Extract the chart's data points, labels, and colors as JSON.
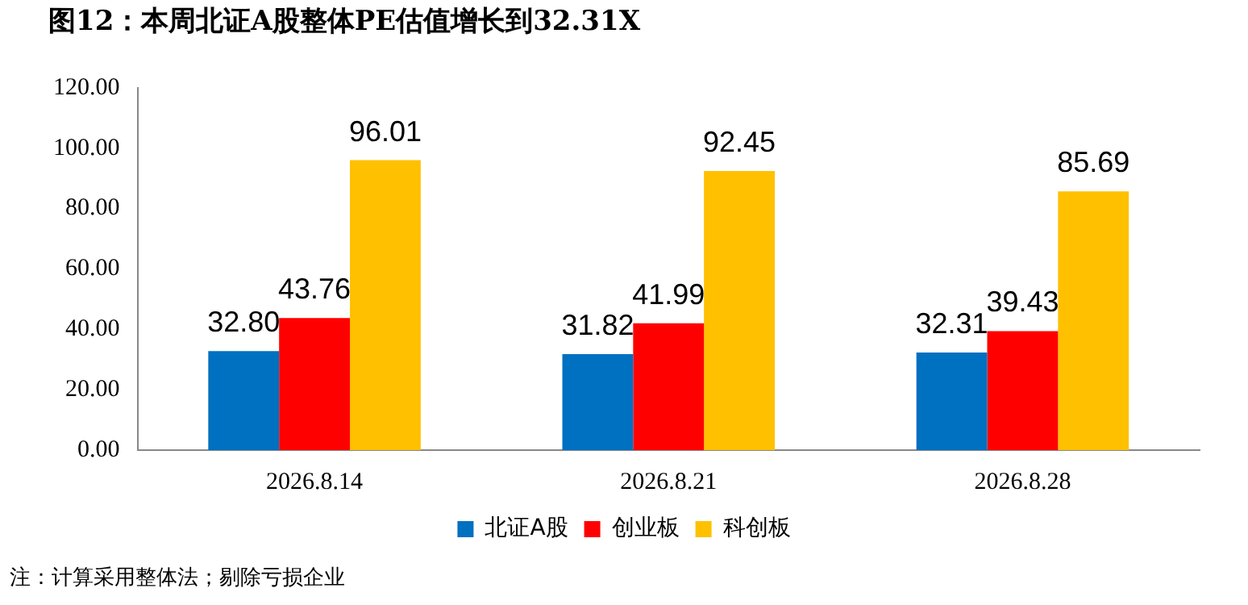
{
  "chart_data": {
    "type": "bar",
    "title": "图12：本周北证A股整体PE估值增长到32.31X",
    "categories": [
      "2026.8.14",
      "2026.8.21",
      "2026.8.28"
    ],
    "series": [
      {
        "name": "北证A股",
        "color": "#0070c0",
        "values": [
          32.8,
          31.82,
          32.31
        ],
        "value_labels": [
          "32.80",
          "31.82",
          "32.31"
        ]
      },
      {
        "name": "创业板",
        "color": "#ff0000",
        "values": [
          43.76,
          41.99,
          39.43
        ],
        "value_labels": [
          "43.76",
          "41.99",
          "39.43"
        ]
      },
      {
        "name": "科创板",
        "color": "#ffc000",
        "values": [
          96.01,
          92.45,
          85.69
        ],
        "value_labels": [
          "96.01",
          "92.45",
          "85.69"
        ]
      }
    ],
    "ylim": [
      0,
      120
    ],
    "yticks": [
      {
        "value": 0,
        "label": "0.00"
      },
      {
        "value": 20,
        "label": "20.00"
      },
      {
        "value": 40,
        "label": "40.00"
      },
      {
        "value": 60,
        "label": "60.00"
      },
      {
        "value": 80,
        "label": "80.00"
      },
      {
        "value": 100,
        "label": "100.00"
      },
      {
        "value": 120,
        "label": "120.00"
      }
    ],
    "grid": false,
    "legend": "bottom",
    "annotations": [
      "注：计算采用整体法；剔除亏损企业"
    ]
  }
}
